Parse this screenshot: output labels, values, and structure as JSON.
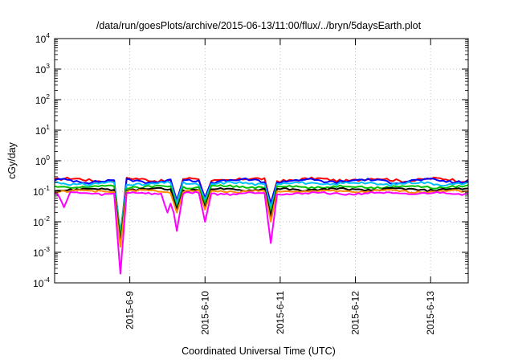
{
  "chart_data": {
    "type": "line",
    "title": "/data/run/goesPlots/archive/2015-06-13/11:00/flux/../bryn/5daysEarth.plot",
    "xlabel": "Coordinated Universal Time (UTC)",
    "ylabel": "cGy/day",
    "yscale": "log",
    "ylim": [
      0.0001,
      10000
    ],
    "y_ticks": [
      {
        "base": "10",
        "exp": "-4"
      },
      {
        "base": "10",
        "exp": "-3"
      },
      {
        "base": "10",
        "exp": "-2"
      },
      {
        "base": "10",
        "exp": "-1"
      },
      {
        "base": "10",
        "exp": "0"
      },
      {
        "base": "10",
        "exp": "1"
      },
      {
        "base": "10",
        "exp": "2"
      },
      {
        "base": "10",
        "exp": "3"
      },
      {
        "base": "10",
        "exp": "4"
      }
    ],
    "xlim": [
      "2015-06-08 00:00",
      "2015-06-13 12:00"
    ],
    "x_ticks": [
      "2015-6-9",
      "2015-6-10",
      "2015-6-11",
      "2015-6-12",
      "2015-6-13"
    ],
    "grid": true,
    "legend": "none",
    "series": [
      {
        "color": "#ff0000",
        "base": 0.24,
        "amp": 0.1,
        "dips": [
          {
            "x": "2015-06-08 21:00",
            "v": 0.004
          },
          {
            "x": "2015-06-09 15:00",
            "v": 0.05
          },
          {
            "x": "2015-06-10 00:00",
            "v": 0.06
          },
          {
            "x": "2015-06-10 21:00",
            "v": 0.04
          }
        ]
      },
      {
        "color": "#0000ff",
        "base": 0.22,
        "amp": 0.1,
        "dips": [
          {
            "x": "2015-06-08 21:00",
            "v": 0.003
          },
          {
            "x": "2015-06-09 15:00",
            "v": 0.05
          },
          {
            "x": "2015-06-10 00:00",
            "v": 0.06
          },
          {
            "x": "2015-06-10 21:00",
            "v": 0.04
          }
        ]
      },
      {
        "color": "#00bfff",
        "base": 0.18,
        "amp": 0.09,
        "dips": [
          {
            "x": "2015-06-08 21:00",
            "v": 0.004
          },
          {
            "x": "2015-06-09 15:00",
            "v": 0.04
          },
          {
            "x": "2015-06-10 00:00",
            "v": 0.05
          },
          {
            "x": "2015-06-10 21:00",
            "v": 0.03
          }
        ]
      },
      {
        "color": "#00c000",
        "base": 0.14,
        "amp": 0.08,
        "dips": [
          {
            "x": "2015-06-08 21:00",
            "v": 0.003
          },
          {
            "x": "2015-06-09 15:00",
            "v": 0.03
          },
          {
            "x": "2015-06-10 00:00",
            "v": 0.04
          },
          {
            "x": "2015-06-10 21:00",
            "v": 0.02
          }
        ]
      },
      {
        "color": "#000000",
        "base": 0.115,
        "amp": 0.07,
        "dips": [
          {
            "x": "2015-06-08 21:00",
            "v": 0.002
          },
          {
            "x": "2015-06-09 15:00",
            "v": 0.025
          },
          {
            "x": "2015-06-10 00:00",
            "v": 0.03
          },
          {
            "x": "2015-06-10 21:00",
            "v": 0.015
          }
        ]
      },
      {
        "color": "#ff8c00",
        "base": 0.1,
        "amp": 0.07,
        "dips": [
          {
            "x": "2015-06-08 21:00",
            "v": 0.0015
          },
          {
            "x": "2015-06-09 15:00",
            "v": 0.02
          },
          {
            "x": "2015-06-10 00:00",
            "v": 0.025
          },
          {
            "x": "2015-06-10 21:00",
            "v": 0.01
          }
        ]
      },
      {
        "color": "#ff00ff",
        "base": 0.085,
        "amp": 0.07,
        "dips": [
          {
            "x": "2015-06-08 03:00",
            "v": 0.03
          },
          {
            "x": "2015-06-08 21:00",
            "v": 0.0002
          },
          {
            "x": "2015-06-09 12:00",
            "v": 0.02
          },
          {
            "x": "2015-06-09 15:00",
            "v": 0.005
          },
          {
            "x": "2015-06-10 00:00",
            "v": 0.01
          },
          {
            "x": "2015-06-10 21:00",
            "v": 0.002
          }
        ]
      }
    ]
  }
}
